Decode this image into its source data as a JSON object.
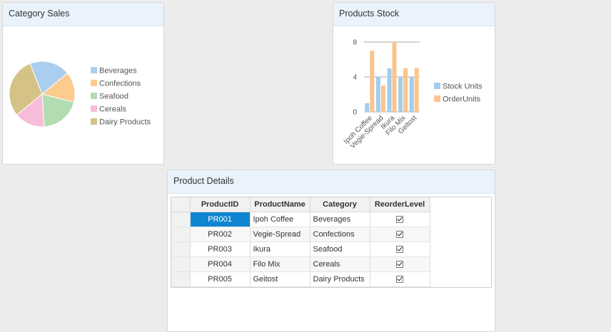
{
  "pie_panel": {
    "title": "Category Sales"
  },
  "bar_panel": {
    "title": "Products Stock"
  },
  "grid_panel": {
    "title": "Product Details"
  },
  "chart_data": [
    {
      "type": "pie",
      "title": "Category Sales",
      "categories": [
        "Beverages",
        "Confections",
        "Seafood",
        "Cereals",
        "Dairy Products"
      ],
      "values": [
        20,
        15,
        20,
        15,
        30
      ],
      "colors": [
        "#aacfee",
        "#fccb8e",
        "#b2dcb1",
        "#f7bcd8",
        "#d4c287"
      ],
      "legend_position": "right"
    },
    {
      "type": "bar",
      "title": "Products Stock",
      "categories": [
        "Ipoh Coffee",
        "Vegie-Spread",
        "Ikura",
        "Filo Mix",
        "Geitost"
      ],
      "series": [
        {
          "name": "Stock Units",
          "values": [
            1,
            4,
            5,
            4,
            4
          ],
          "color": "#a4cdea"
        },
        {
          "name": "OrderUnits",
          "values": [
            7,
            3,
            8,
            5,
            5
          ],
          "color": "#fbc48e"
        }
      ],
      "ylim": [
        0,
        8
      ],
      "yticks": [
        0,
        4,
        8
      ],
      "grid": true,
      "legend_position": "right"
    }
  ],
  "grid": {
    "columns": [
      "ProductID",
      "ProductName",
      "Category",
      "ReorderLevel"
    ],
    "rows": [
      {
        "id": "PR001",
        "name": "Ipoh Coffee",
        "category": "Beverages",
        "reorder": true
      },
      {
        "id": "PR002",
        "name": "Vegie-Spread",
        "category": "Confections",
        "reorder": true
      },
      {
        "id": "PR003",
        "name": "Ikura",
        "category": "Seafood",
        "reorder": true
      },
      {
        "id": "PR004",
        "name": "Filo Mix",
        "category": "Cereals",
        "reorder": true
      },
      {
        "id": "PR005",
        "name": "Geitost",
        "category": "Dairy Products",
        "reorder": true
      }
    ],
    "selected_cell": "PR001"
  }
}
